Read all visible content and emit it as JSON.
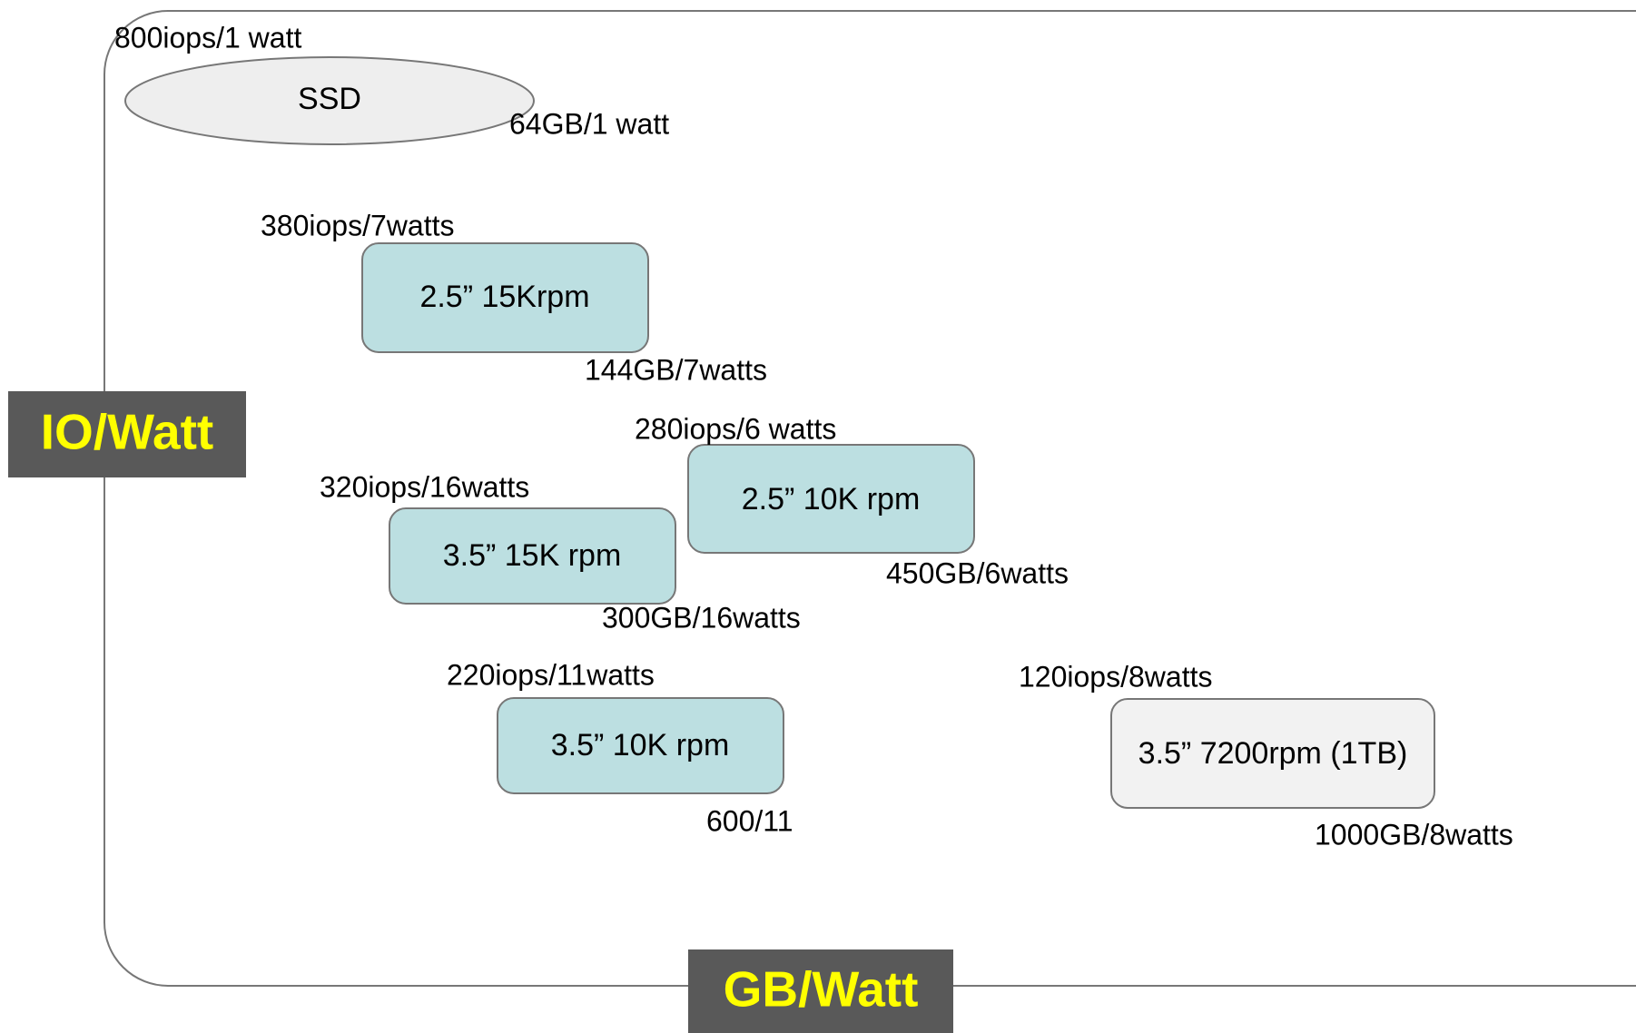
{
  "axes": {
    "y_label": "IO/Watt",
    "x_label": "GB/Watt"
  },
  "nodes": [
    {
      "label": "SSD",
      "iops": "800iops/1 watt",
      "capacity": "64GB/1 watt"
    },
    {
      "label": "2.5” 15Krpm",
      "iops": "380iops/7watts",
      "capacity": "144GB/7watts"
    },
    {
      "label": "2.5” 10K rpm",
      "iops": "280iops/6 watts",
      "capacity": "450GB/6watts"
    },
    {
      "label": "3.5” 15K rpm",
      "iops": "320iops/16watts",
      "capacity": "300GB/16watts"
    },
    {
      "label": "3.5” 10K rpm",
      "iops": "220iops/11watts",
      "capacity": "600/11"
    },
    {
      "label": "3.5” 7200rpm (1TB)",
      "iops": "120iops/8watts",
      "capacity": "1000GB/8watts"
    }
  ]
}
